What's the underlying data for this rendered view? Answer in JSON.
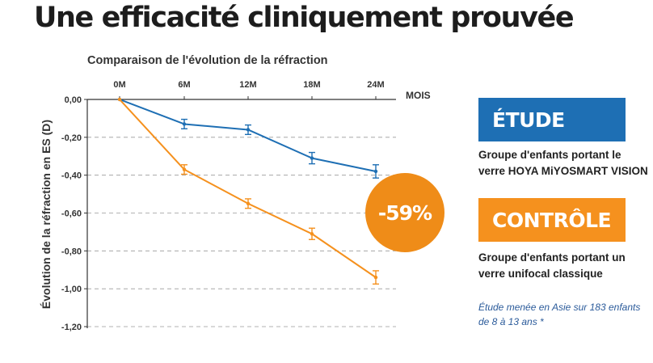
{
  "page": {
    "title": "Une efficacité cliniquement prouvée"
  },
  "chart_data": {
    "type": "line",
    "title": "Comparaison de l'évolution de la réfraction",
    "xlabel": "MOIS",
    "ylabel": "Évolution de la réfraction en ES (D)",
    "categories": [
      "0M",
      "6M",
      "12M",
      "18M",
      "24M"
    ],
    "yticks": [
      "0,00",
      "-0,20",
      "-0,40",
      "-0,60",
      "-0,80",
      "-1,00",
      "-1,20"
    ],
    "ylim": [
      -1.2,
      0
    ],
    "grid": true,
    "series": [
      {
        "name": "ÉTUDE",
        "color": "#1e6fb4",
        "values": [
          0.0,
          -0.13,
          -0.16,
          -0.31,
          -0.38
        ],
        "errors": [
          0,
          0.025,
          0.025,
          0.03,
          0.035
        ]
      },
      {
        "name": "CONTRÔLE",
        "color": "#f5911e",
        "values": [
          0.0,
          -0.37,
          -0.55,
          -0.71,
          -0.94
        ],
        "errors": [
          0,
          0.025,
          0.025,
          0.03,
          0.035
        ]
      }
    ],
    "annotation": "-59%"
  },
  "legend": {
    "etude": {
      "label": "ÉTUDE",
      "color": "#1e6fb4",
      "description": "Groupe d'enfants portant le verre HOYA MiYOSMART VISION"
    },
    "controle": {
      "label": "CONTRÔLE",
      "color": "#f5911e",
      "description": "Groupe d'enfants portant un verre unifocal classique"
    }
  },
  "note": "Étude menée en Asie sur 183 enfants de 8 à 13 ans *"
}
